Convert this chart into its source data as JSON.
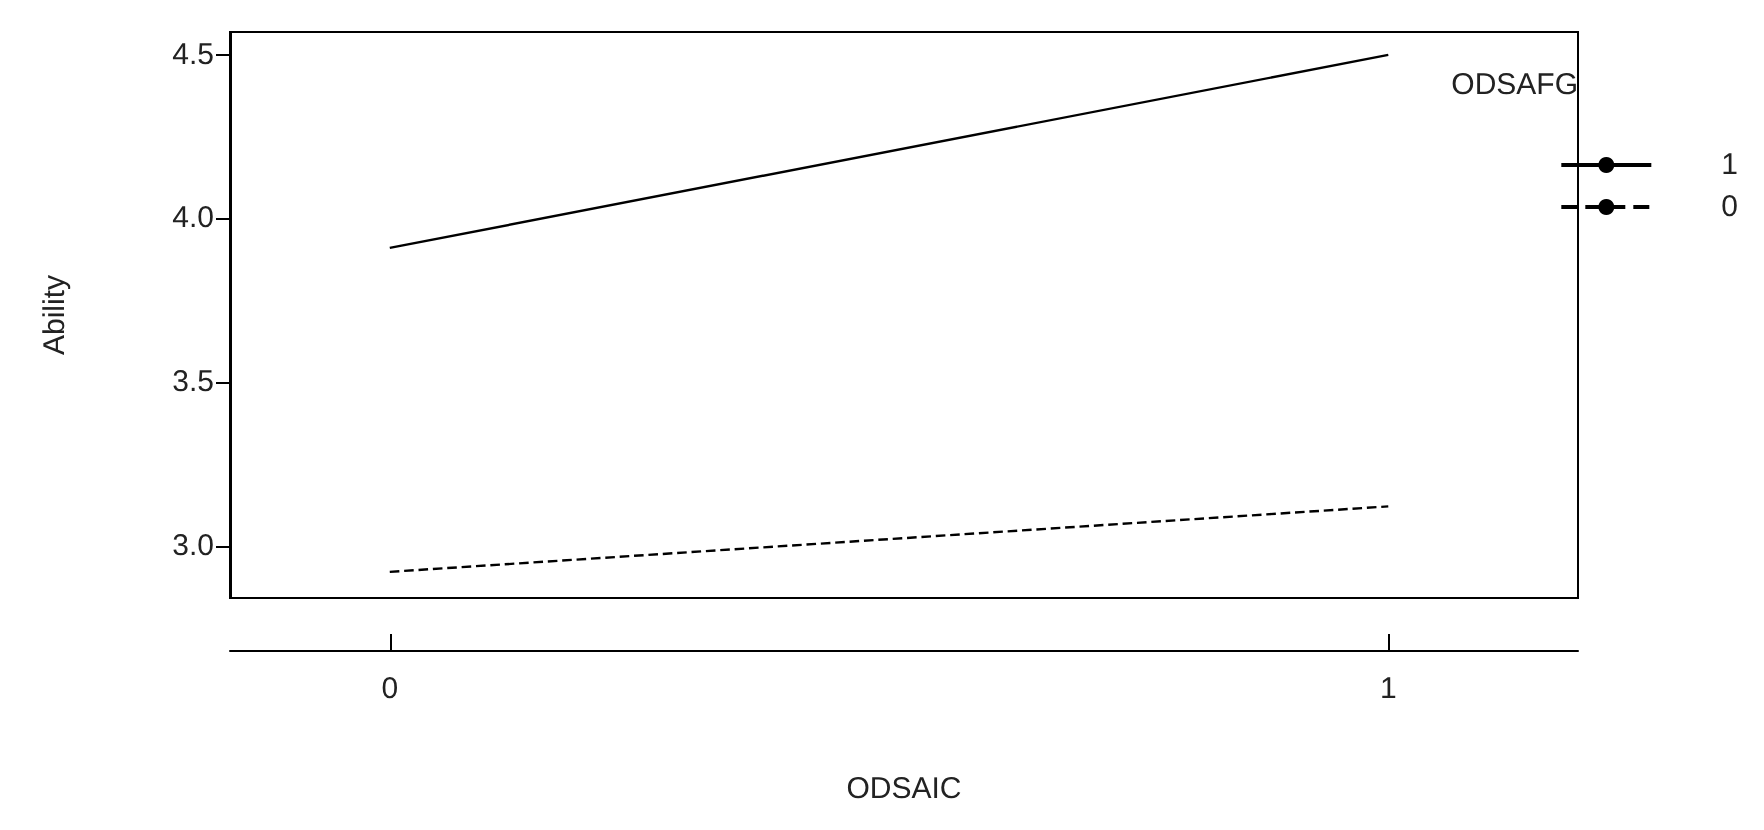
{
  "chart_data": {
    "type": "line",
    "xlabel": "ODSAIC",
    "ylabel": "Ability",
    "legend_title": "ODSAFG",
    "x": [
      0,
      1
    ],
    "series": [
      {
        "name": "1",
        "color": "#000000",
        "values": [
          3.91,
          4.5
        ],
        "line_style": "solid"
      },
      {
        "name": "0",
        "color": "#000000",
        "values": [
          2.92,
          3.12
        ],
        "line_style": "dashed"
      }
    ],
    "xlim": [
      -0.16,
      1.19
    ],
    "xticks": [
      0,
      1
    ],
    "ylim": [
      2.84,
      4.57
    ],
    "yticks": [
      {
        "value": 3,
        "label": "3.0"
      },
      {
        "value": 3.5,
        "label": "3.5"
      },
      {
        "value": 4,
        "label": "4.0"
      },
      {
        "value": 4.5,
        "label": "4.5"
      }
    ],
    "grid": false,
    "legend": "top right",
    "marker": "none"
  }
}
